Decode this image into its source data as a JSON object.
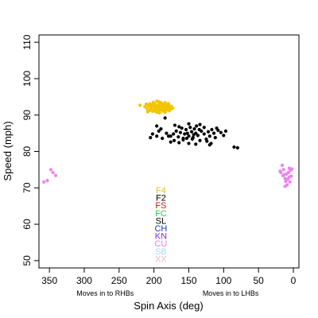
{
  "chart_data": {
    "type": "scatter",
    "xlabel": "Spin Axis (deg)",
    "ylabel": "Speed (mph)",
    "xlim": [
      365,
      -8
    ],
    "ylim": [
      48,
      112
    ],
    "x_reversed": true,
    "x_ticks": [
      350,
      300,
      250,
      200,
      150,
      100,
      50,
      0
    ],
    "y_ticks": [
      50,
      60,
      70,
      80,
      90,
      100,
      110
    ],
    "x_tick_labels": [
      "350",
      "300",
      "250",
      "200",
      "150",
      "100",
      "50",
      "0"
    ],
    "y_tick_labels": [
      "50",
      "60",
      "70",
      "80",
      "90",
      "100",
      "110"
    ],
    "annotations": [
      {
        "text": "Moves in to RHBs",
        "x": 270
      },
      {
        "text": "Moves in to LHBs",
        "x": 90
      }
    ],
    "legend": {
      "placement": "center-bottom",
      "entries": [
        {
          "label": "F4",
          "color": "#e5c31a"
        },
        {
          "label": "F2",
          "color": "#000000"
        },
        {
          "label": "FS",
          "color": "#c01818"
        },
        {
          "label": "FC",
          "color": "#2ad04a"
        },
        {
          "label": "SL",
          "color": "#000000"
        },
        {
          "label": "CH",
          "color": "#1238c8"
        },
        {
          "label": "KN",
          "color": "#8a2be2"
        },
        {
          "label": "CU",
          "color": "#e07ae0"
        },
        {
          "label": "SB",
          "color": "#a8d8f0"
        },
        {
          "label": "XX",
          "color": "#f4b8c4"
        }
      ]
    },
    "series": [
      {
        "name": "F4",
        "color": "#f2c500",
        "points": [
          [
            213,
            92.3
          ],
          [
            210,
            91.8
          ],
          [
            208,
            92.6
          ],
          [
            207,
            91.2
          ],
          [
            206,
            93.1
          ],
          [
            205,
            92.0
          ],
          [
            204,
            91.5
          ],
          [
            203,
            92.8
          ],
          [
            202,
            91.0
          ],
          [
            201,
            93.5
          ],
          [
            200,
            92.2
          ],
          [
            199,
            91.7
          ],
          [
            198,
            92.9
          ],
          [
            197,
            90.9
          ],
          [
            196,
            93.8
          ],
          [
            195,
            92.4
          ],
          [
            194,
            91.3
          ],
          [
            193,
            92.7
          ],
          [
            192,
            90.6
          ],
          [
            191,
            93.2
          ],
          [
            190,
            92.1
          ],
          [
            189,
            91.6
          ],
          [
            188,
            93.0
          ],
          [
            187,
            91.1
          ],
          [
            186,
            92.5
          ],
          [
            185,
            91.9
          ],
          [
            184,
            93.4
          ],
          [
            183,
            92.3
          ],
          [
            182,
            91.4
          ],
          [
            181,
            92.8
          ],
          [
            180,
            91.8
          ],
          [
            179,
            92.6
          ],
          [
            178,
            91.2
          ],
          [
            177,
            92.0
          ],
          [
            176,
            91.6
          ],
          [
            175,
            92.4
          ],
          [
            196,
            92.0
          ],
          [
            194,
            92.6
          ],
          [
            199,
            93.0
          ],
          [
            202,
            92.4
          ],
          [
            188,
            92.2
          ],
          [
            191,
            91.4
          ],
          [
            185,
            92.8
          ],
          [
            200,
            91.4
          ],
          [
            193,
            93.6
          ],
          [
            197,
            92.2
          ],
          [
            190,
            93.4
          ],
          [
            186,
            91.6
          ],
          [
            204,
            92.6
          ],
          [
            182,
            92.0
          ],
          [
            195,
            90.8
          ],
          [
            189,
            92.4
          ],
          [
            192,
            92.0
          ],
          [
            198,
            91.2
          ],
          [
            187,
            92.8
          ],
          [
            183,
            91.8
          ],
          [
            220,
            92.7
          ],
          [
            211,
            93.0
          ],
          [
            179,
            93.1
          ],
          [
            173,
            91.9
          ],
          [
            209,
            90.9
          ],
          [
            184,
            90.8
          ]
        ]
      },
      {
        "name": "",
        "color": "#000000",
        "points": [
          [
            196,
            87.0
          ],
          [
            190,
            86.2
          ],
          [
            182,
            85.0
          ],
          [
            176,
            84.2
          ],
          [
            172,
            84.8
          ],
          [
            168,
            85.6
          ],
          [
            165,
            84.0
          ],
          [
            162,
            85.2
          ],
          [
            160,
            86.4
          ],
          [
            158,
            83.6
          ],
          [
            156,
            84.8
          ],
          [
            154,
            86.0
          ],
          [
            152,
            85.0
          ],
          [
            150,
            84.2
          ],
          [
            148,
            86.6
          ],
          [
            146,
            85.4
          ],
          [
            144,
            83.8
          ],
          [
            142,
            86.2
          ],
          [
            140,
            85.0
          ],
          [
            139,
            87.0
          ],
          [
            137,
            84.4
          ],
          [
            135,
            86.0
          ],
          [
            132,
            85.6
          ],
          [
            128,
            84.8
          ],
          [
            125,
            83.4
          ],
          [
            122,
            85.4
          ],
          [
            120,
            84.2
          ],
          [
            117,
            86.0
          ],
          [
            114,
            85.0
          ],
          [
            112,
            83.8
          ],
          [
            108,
            85.8
          ],
          [
            104,
            85.2
          ],
          [
            100,
            84.4
          ],
          [
            97,
            85.6
          ],
          [
            85,
            81.2
          ],
          [
            80,
            81.0
          ],
          [
            176,
            82.6
          ],
          [
            171,
            83.0
          ],
          [
            164,
            82.4
          ],
          [
            158,
            83.2
          ],
          [
            150,
            82.2
          ],
          [
            145,
            83.4
          ],
          [
            140,
            82.0
          ],
          [
            134,
            83.0
          ],
          [
            124,
            82.8
          ],
          [
            118,
            82.2
          ],
          [
            202,
            84.8
          ],
          [
            205,
            83.8
          ],
          [
            196,
            84.2
          ],
          [
            188,
            83.6
          ],
          [
            193,
            85.6
          ],
          [
            170,
            87.2
          ],
          [
            150,
            87.6
          ],
          [
            134,
            87.4
          ],
          [
            128,
            86.6
          ],
          [
            110,
            86.4
          ],
          [
            184,
            89.2
          ],
          [
            164,
            86.8
          ],
          [
            143,
            84.6
          ],
          [
            120,
            81.8
          ],
          [
            179,
            84.2
          ],
          [
            153,
            83.6
          ]
        ]
      },
      {
        "name": "",
        "color": "#ee82ee",
        "points": [
          [
            358,
            71.6
          ],
          [
            353,
            72.0
          ],
          [
            348,
            75.0
          ],
          [
            345,
            74.2
          ],
          [
            341,
            73.4
          ],
          [
            19,
            74.6
          ],
          [
            16,
            76.2
          ],
          [
            14,
            75.0
          ],
          [
            13,
            73.6
          ],
          [
            12,
            72.6
          ],
          [
            11,
            71.8
          ],
          [
            10,
            73.8
          ],
          [
            9,
            70.8
          ],
          [
            8,
            72.4
          ],
          [
            7,
            74.2
          ],
          [
            6,
            73.0
          ],
          [
            5,
            71.6
          ],
          [
            4,
            74.8
          ],
          [
            3,
            73.2
          ],
          [
            2,
            75.2
          ],
          [
            12,
            70.4
          ],
          [
            15,
            73.4
          ],
          [
            18,
            74.2
          ],
          [
            6,
            75.4
          ]
        ]
      }
    ]
  }
}
